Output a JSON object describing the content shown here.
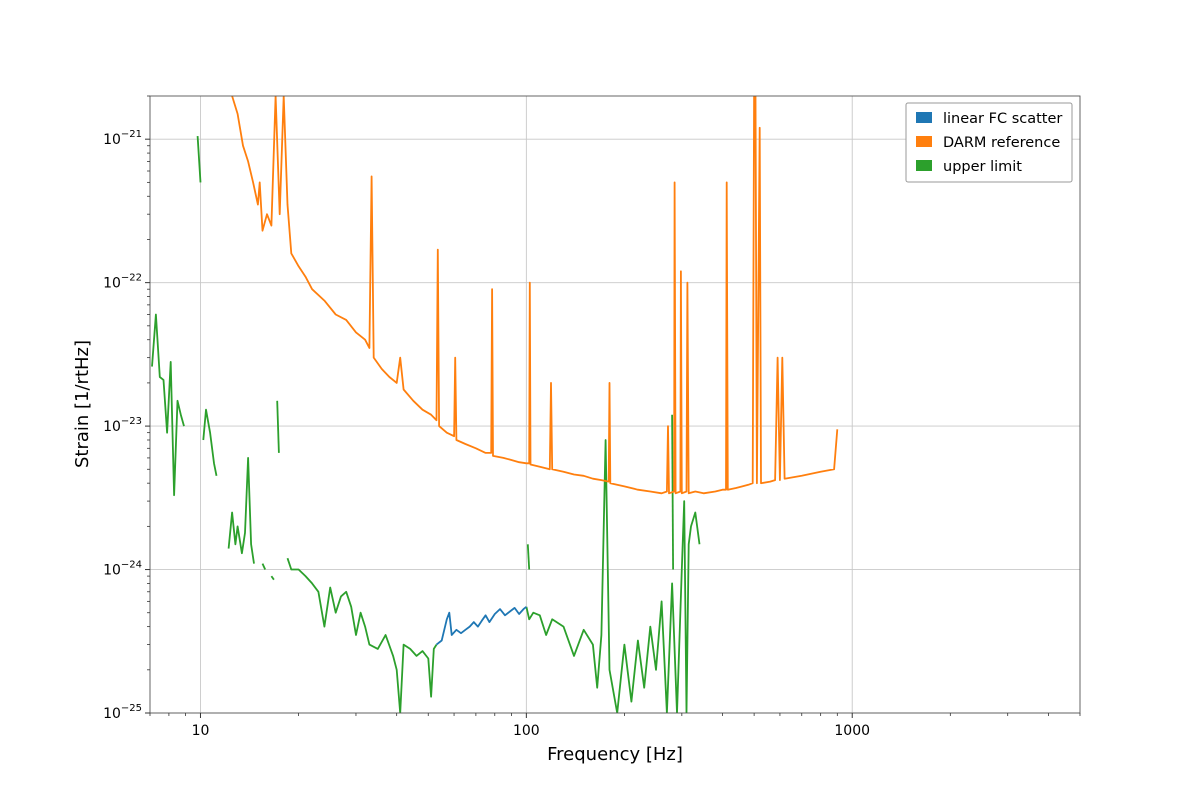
{
  "chart_data": {
    "type": "line",
    "title": "",
    "xlabel": "Frequency [Hz]",
    "ylabel": "Strain [1/rtHz]",
    "xscale": "log",
    "yscale": "log",
    "xlim": [
      7,
      5000
    ],
    "ylim": [
      1e-25,
      2e-21
    ],
    "grid": true,
    "legend_position": "top-right",
    "x_ticks": [
      {
        "value": 10,
        "label": "10"
      },
      {
        "value": 100,
        "label": "100"
      },
      {
        "value": 1000,
        "label": "1000"
      }
    ],
    "y_ticks": [
      {
        "value": 1e-25,
        "base": "10",
        "exp": "−25"
      },
      {
        "value": 1e-24,
        "base": "10",
        "exp": "−24"
      },
      {
        "value": 1e-23,
        "base": "10",
        "exp": "−23"
      },
      {
        "value": 1e-22,
        "base": "10",
        "exp": "−22"
      },
      {
        "value": 1e-21,
        "base": "10",
        "exp": "−21"
      }
    ],
    "series": [
      {
        "name": "linear FC scatter",
        "color": "#1f77b4",
        "points": [
          [
            53,
            3e-25
          ],
          [
            55,
            3.2e-25
          ],
          [
            57,
            4.5e-25
          ],
          [
            58,
            5e-25
          ],
          [
            59,
            3.5e-25
          ],
          [
            61,
            3.8e-25
          ],
          [
            63,
            3.6e-25
          ],
          [
            65,
            3.8e-25
          ],
          [
            67,
            4e-25
          ],
          [
            69,
            4.3e-25
          ],
          [
            71,
            4e-25
          ],
          [
            73,
            4.4e-25
          ],
          [
            75,
            4.8e-25
          ],
          [
            77,
            4.3e-25
          ],
          [
            80,
            4.9e-25
          ],
          [
            83,
            5.3e-25
          ],
          [
            86,
            4.8e-25
          ],
          [
            89,
            5.1e-25
          ],
          [
            92,
            5.4e-25
          ],
          [
            95,
            4.9e-25
          ],
          [
            98,
            5.3e-25
          ],
          [
            100,
            5.5e-25
          ]
        ]
      },
      {
        "name": "DARM reference",
        "color": "#ff7f0e",
        "points": [
          [
            12.5,
            2e-21
          ],
          [
            13.0,
            1.5e-21
          ],
          [
            13.5,
            9e-22
          ],
          [
            14.0,
            7e-22
          ],
          [
            14.5,
            5e-22
          ],
          [
            15.0,
            3.5e-22
          ],
          [
            15.2,
            5e-22
          ],
          [
            15.5,
            2.3e-22
          ],
          [
            16.0,
            3e-22
          ],
          [
            16.5,
            2.5e-22
          ],
          [
            17.0,
            2e-21
          ],
          [
            17.5,
            3e-22
          ],
          [
            18.0,
            2e-21
          ],
          [
            18.5,
            3.5e-22
          ],
          [
            19.0,
            1.6e-22
          ],
          [
            20,
            1.3e-22
          ],
          [
            21,
            1.1e-22
          ],
          [
            22,
            9e-23
          ],
          [
            24,
            7.5e-23
          ],
          [
            26,
            6e-23
          ],
          [
            28,
            5.5e-23
          ],
          [
            30,
            4.5e-23
          ],
          [
            32,
            4e-23
          ],
          [
            33,
            3.5e-23
          ],
          [
            33.5,
            5.5e-22
          ],
          [
            34,
            3e-23
          ],
          [
            36,
            2.5e-23
          ],
          [
            38,
            2.2e-23
          ],
          [
            40,
            2e-23
          ],
          [
            41,
            3e-23
          ],
          [
            42,
            1.8e-23
          ],
          [
            45,
            1.5e-23
          ],
          [
            48,
            1.3e-23
          ],
          [
            51,
            1.2e-23
          ],
          [
            53,
            1.1e-23
          ],
          [
            53.5,
            1.7e-22
          ],
          [
            54,
            1e-23
          ],
          [
            57,
            9e-24
          ],
          [
            60,
            8.5e-24
          ],
          [
            60.5,
            3e-23
          ],
          [
            61,
            8e-24
          ],
          [
            65,
            7.5e-24
          ],
          [
            70,
            7e-24
          ],
          [
            75,
            6.5e-24
          ],
          [
            78,
            6.5e-24
          ],
          [
            78.5,
            9e-23
          ],
          [
            79,
            6.2e-24
          ],
          [
            85,
            6e-24
          ],
          [
            90,
            5.8e-24
          ],
          [
            95,
            5.6e-24
          ],
          [
            100,
            5.5e-24
          ],
          [
            102,
            5.5e-24
          ],
          [
            102.5,
            1e-22
          ],
          [
            103,
            5.4e-24
          ],
          [
            110,
            5.2e-24
          ],
          [
            118,
            5e-24
          ],
          [
            119,
            2e-23
          ],
          [
            120,
            5e-24
          ],
          [
            130,
            4.8e-24
          ],
          [
            140,
            4.6e-24
          ],
          [
            150,
            4.5e-24
          ],
          [
            160,
            4.3e-24
          ],
          [
            170,
            4.2e-24
          ],
          [
            179,
            4.1e-24
          ],
          [
            180,
            2e-23
          ],
          [
            181,
            4e-24
          ],
          [
            200,
            3.8e-24
          ],
          [
            220,
            3.6e-24
          ],
          [
            240,
            3.5e-24
          ],
          [
            260,
            3.4e-24
          ],
          [
            270,
            3.5e-24
          ],
          [
            272,
            1e-23
          ],
          [
            274,
            3.4e-24
          ],
          [
            284,
            3.5e-24
          ],
          [
            285,
            5e-22
          ],
          [
            287,
            3.4e-24
          ],
          [
            297,
            3.5e-24
          ],
          [
            298,
            1.2e-22
          ],
          [
            300,
            3.4e-24
          ],
          [
            310,
            3.5e-24
          ],
          [
            312,
            1e-22
          ],
          [
            315,
            3.4e-24
          ],
          [
            330,
            3.5e-24
          ],
          [
            350,
            3.4e-24
          ],
          [
            380,
            3.5e-24
          ],
          [
            400,
            3.6e-24
          ],
          [
            410,
            3.6e-24
          ],
          [
            412,
            5e-22
          ],
          [
            415,
            3.6e-24
          ],
          [
            440,
            3.7e-24
          ],
          [
            460,
            3.8e-24
          ],
          [
            480,
            3.9e-24
          ],
          [
            495,
            4e-24
          ],
          [
            500,
            2e-21
          ],
          [
            505,
            2e-21
          ],
          [
            510,
            4e-24
          ],
          [
            520,
            1.2e-21
          ],
          [
            525,
            4e-24
          ],
          [
            560,
            4.1e-24
          ],
          [
            580,
            4.2e-24
          ],
          [
            590,
            3e-23
          ],
          [
            600,
            4.2e-24
          ],
          [
            610,
            3e-23
          ],
          [
            620,
            4.3e-24
          ],
          [
            700,
            4.5e-24
          ],
          [
            800,
            4.8e-24
          ],
          [
            880,
            5e-24
          ],
          [
            900,
            9.5e-24
          ]
        ]
      },
      {
        "name": "upper limit",
        "color": "#2ca02c",
        "segments": [
          [
            [
              9.8,
              1.05e-21
            ],
            [
              10.0,
              5e-22
            ]
          ],
          [
            [
              7.1,
              2.6e-23
            ],
            [
              7.3,
              6e-23
            ],
            [
              7.5,
              2.2e-23
            ],
            [
              7.7,
              2.1e-23
            ],
            [
              7.9,
              9e-24
            ],
            [
              8.1,
              2.8e-23
            ],
            [
              8.3,
              3.3e-24
            ],
            [
              8.5,
              1.5e-23
            ],
            [
              8.7,
              1.2e-23
            ],
            [
              8.9,
              1e-23
            ]
          ],
          [
            [
              10.2,
              8e-24
            ],
            [
              10.4,
              1.3e-23
            ],
            [
              10.7,
              9e-24
            ],
            [
              11.0,
              5.5e-24
            ],
            [
              11.2,
              4.5e-24
            ]
          ],
          [
            [
              12.2,
              1.4e-24
            ],
            [
              12.5,
              2.5e-24
            ],
            [
              12.8,
              1.5e-24
            ],
            [
              13.0,
              2e-24
            ],
            [
              13.4,
              1.3e-24
            ],
            [
              13.7,
              1.8e-24
            ],
            [
              14.0,
              6e-24
            ],
            [
              14.3,
              1.5e-24
            ],
            [
              14.6,
              1.1e-24
            ]
          ],
          [
            [
              15.5,
              1.1e-24
            ],
            [
              15.8,
              1e-24
            ]
          ],
          [
            [
              16.5,
              9e-25
            ],
            [
              16.8,
              8.5e-25
            ]
          ],
          [
            [
              17.2,
              1.5e-23
            ],
            [
              17.4,
              6.5e-24
            ]
          ],
          [
            [
              18.5,
              1.2e-24
            ],
            [
              19.0,
              1e-24
            ],
            [
              20,
              1e-24
            ],
            [
              21,
              9e-25
            ],
            [
              22,
              8e-25
            ],
            [
              23,
              7e-25
            ],
            [
              24,
              4e-25
            ],
            [
              25,
              7.5e-25
            ],
            [
              26,
              5e-25
            ],
            [
              27,
              6.5e-25
            ],
            [
              28,
              7e-25
            ],
            [
              29,
              5.5e-25
            ],
            [
              30,
              3.5e-25
            ],
            [
              31,
              5e-25
            ],
            [
              32,
              4e-25
            ],
            [
              33,
              3e-25
            ],
            [
              35,
              2.8e-25
            ],
            [
              37,
              3.5e-25
            ],
            [
              39,
              2.5e-25
            ],
            [
              40,
              2e-25
            ],
            [
              41,
              1e-25
            ],
            [
              42,
              3e-25
            ],
            [
              44,
              2.8e-25
            ],
            [
              46,
              2.5e-25
            ],
            [
              48,
              2.7e-25
            ],
            [
              50,
              2.4e-25
            ],
            [
              51,
              1.3e-25
            ],
            [
              52,
              2.8e-25
            ],
            [
              53,
              3e-25
            ]
          ],
          [
            [
              100,
              5.5e-25
            ],
            [
              102,
              4.5e-25
            ],
            [
              105,
              5e-25
            ],
            [
              110,
              4.8e-25
            ],
            [
              115,
              3.5e-25
            ],
            [
              120,
              4.5e-25
            ],
            [
              130,
              4e-25
            ],
            [
              140,
              2.5e-25
            ],
            [
              150,
              3.8e-25
            ],
            [
              160,
              3e-25
            ],
            [
              165,
              1.5e-25
            ],
            [
              170,
              3.5e-25
            ],
            [
              175,
              8e-24
            ],
            [
              180,
              2e-25
            ],
            [
              190,
              1e-25
            ],
            [
              200,
              3e-25
            ],
            [
              210,
              1.2e-25
            ],
            [
              220,
              3.2e-25
            ],
            [
              230,
              1.5e-25
            ],
            [
              240,
              4e-25
            ],
            [
              250,
              2e-25
            ],
            [
              260,
              6e-25
            ],
            [
              270,
              1e-25
            ],
            [
              280,
              8e-25
            ],
            [
              290,
              1e-25
            ],
            [
              300,
              1e-24
            ],
            [
              305,
              3e-24
            ],
            [
              310,
              1e-25
            ],
            [
              315,
              1.5e-24
            ],
            [
              320,
              2e-24
            ],
            [
              330,
              2.5e-24
            ],
            [
              340,
              1.5e-24
            ]
          ],
          [
            [
              101,
              1.5e-24
            ],
            [
              102,
              1e-24
            ]
          ],
          [
            [
              280,
              1.2e-23
            ],
            [
              282,
              1e-24
            ]
          ]
        ]
      }
    ]
  }
}
